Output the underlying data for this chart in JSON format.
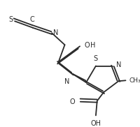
{
  "bg_color": "#ffffff",
  "line_color": "#2a2a2a",
  "lw": 1.3,
  "font_size": 7.0,
  "figsize": [
    2.01,
    1.82
  ],
  "dpi": 100,
  "xlim": [
    0,
    201
  ],
  "ylim": [
    0,
    182
  ]
}
